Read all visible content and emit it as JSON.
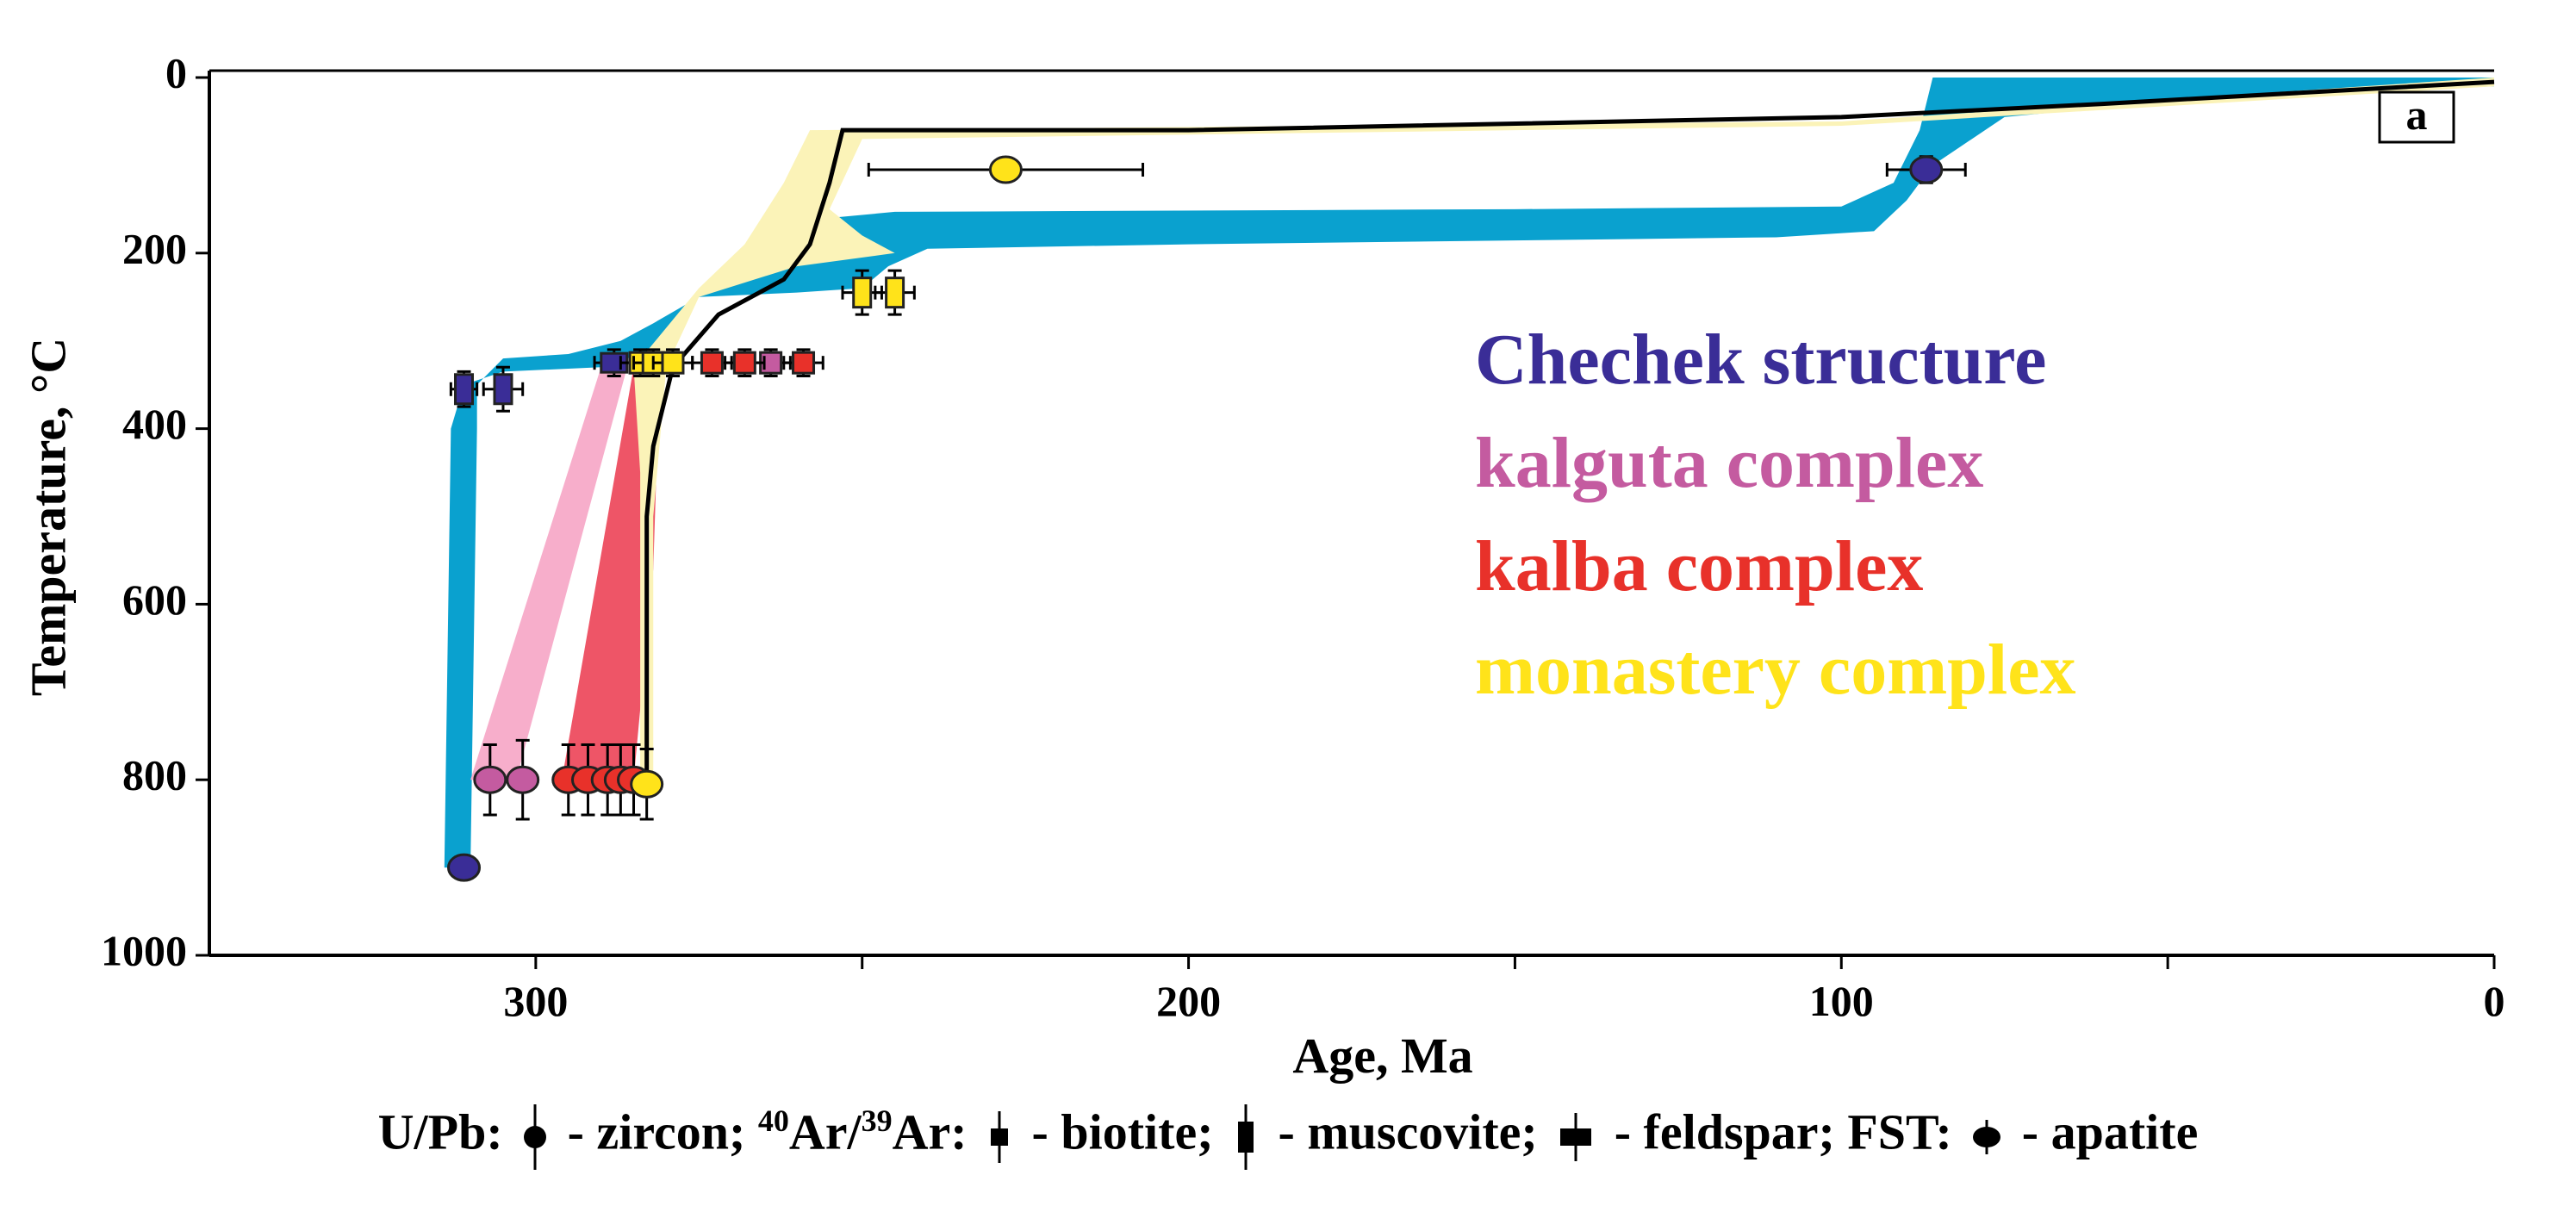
{
  "chart_data": {
    "type": "scatter",
    "x_label": "Age, Ma",
    "y_label": "Temperature, °C",
    "xlim": [
      350,
      0
    ],
    "xticks": [
      300,
      200,
      100,
      0
    ],
    "xticks_minor": [
      250,
      150,
      50
    ],
    "ylim": [
      0,
      1000
    ],
    "y_inverted": true,
    "yticks": [
      0,
      200,
      400,
      600,
      800,
      1000
    ],
    "panel_label": "a",
    "series": [
      {
        "name": "Chechek structure",
        "color": "#3a2d97",
        "x": [
          311,
          311,
          305,
          288,
          87
        ],
        "values": [
          900,
          355,
          355,
          325,
          105
        ],
        "markers": [
          "circle",
          "tall",
          "tall",
          "wide",
          "circle"
        ],
        "x_err": [
          0,
          2,
          3,
          3,
          6
        ],
        "y_err": [
          0,
          20,
          25,
          15,
          15
        ]
      },
      {
        "name": "kalguta complex",
        "color": "#c45ba0",
        "x": [
          307,
          302,
          264
        ],
        "values": [
          800,
          800,
          325
        ],
        "markers": [
          "circle",
          "circle",
          "square"
        ],
        "x_err": [
          0,
          0,
          3
        ],
        "y_err": [
          40,
          45,
          15
        ]
      },
      {
        "name": "kalba complex",
        "color": "#e8312a",
        "x": [
          295,
          292,
          289,
          287,
          285,
          273,
          268,
          259
        ],
        "values": [
          800,
          800,
          800,
          800,
          800,
          325,
          325,
          325
        ],
        "markers": [
          "circle",
          "circle",
          "circle",
          "circle",
          "circle",
          "square",
          "square",
          "square"
        ],
        "x_err": [
          0,
          0,
          0,
          0,
          0,
          3,
          3,
          3
        ],
        "y_err": [
          40,
          40,
          40,
          40,
          40,
          15,
          15,
          15
        ]
      },
      {
        "name": "monastery complex",
        "color": "#ffe31a",
        "x": [
          283,
          284,
          282,
          279,
          250,
          245,
          228
        ],
        "values": [
          805,
          325,
          325,
          325,
          245,
          245,
          105
        ],
        "markers": [
          "circle",
          "square",
          "square",
          "square",
          "tall",
          "tall",
          "circle"
        ],
        "x_err": [
          0,
          3,
          3,
          3,
          3,
          3,
          21
        ],
        "y_err": [
          40,
          15,
          15,
          15,
          25,
          25,
          10
        ]
      }
    ],
    "bands": [
      {
        "color": "#0aa1cf",
        "x": [
          314,
          313,
          311,
          305,
          290,
          282,
          276,
          270,
          264,
          262,
          255,
          245,
          150,
          100,
          92,
          88,
          86,
          0,
          0,
          40,
          75,
          82,
          86,
          90,
          95,
          110,
          200,
          240,
          246,
          250,
          260,
          275,
          282,
          287,
          295,
          305,
          309,
          309,
          310
        ],
        "values": [
          900,
          400,
          350,
          335,
          330,
          310,
          250,
          215,
          210,
          200,
          160,
          153,
          150,
          147,
          120,
          60,
          0,
          0,
          10,
          20,
          45,
          80,
          100,
          140,
          175,
          182,
          190,
          195,
          215,
          240,
          245,
          250,
          280,
          300,
          315,
          320,
          350,
          400,
          900
        ]
      },
      {
        "color": "#f7aecb",
        "x": [
          310,
          290,
          286,
          303
        ],
        "values": [
          800,
          330,
          330,
          800
        ]
      },
      {
        "color": "#ee5567",
        "x": [
          296,
          285,
          281,
          282,
          285
        ],
        "values": [
          800,
          330,
          330,
          560,
          800
        ]
      },
      {
        "color": "#fbf3b8",
        "x": [
          284,
          284,
          285,
          275,
          268,
          262,
          258,
          100,
          0,
          0,
          100,
          250,
          255,
          250,
          245,
          260,
          275,
          280,
          282,
          282
        ],
        "values": [
          800,
          450,
          330,
          240,
          190,
          120,
          60,
          50,
          0,
          10,
          55,
          70,
          150,
          180,
          200,
          215,
          250,
          330,
          500,
          800
        ]
      }
    ],
    "path": {
      "color": "#000000",
      "x": [
        283,
        283,
        282,
        279,
        272,
        262,
        258,
        255,
        253,
        200,
        100,
        60,
        0
      ],
      "values": [
        800,
        500,
        420,
        330,
        270,
        230,
        190,
        120,
        60,
        60,
        45,
        30,
        5
      ]
    },
    "annotations": [
      {
        "text": "Chechek structure",
        "color": "#3a2d97"
      },
      {
        "text": "kalguta complex",
        "color": "#c45ba0"
      },
      {
        "text": "kalba complex",
        "color": "#e8312a"
      },
      {
        "text": "monastery complex",
        "color": "#ffe31a"
      }
    ],
    "caption": [
      "U/Pb:",
      "- zircon;",
      "40",
      "Ar/",
      "39",
      "Ar:",
      "- biotite;",
      "- muscovite;",
      "- feldspar;",
      "FST:",
      "- apatite"
    ]
  }
}
